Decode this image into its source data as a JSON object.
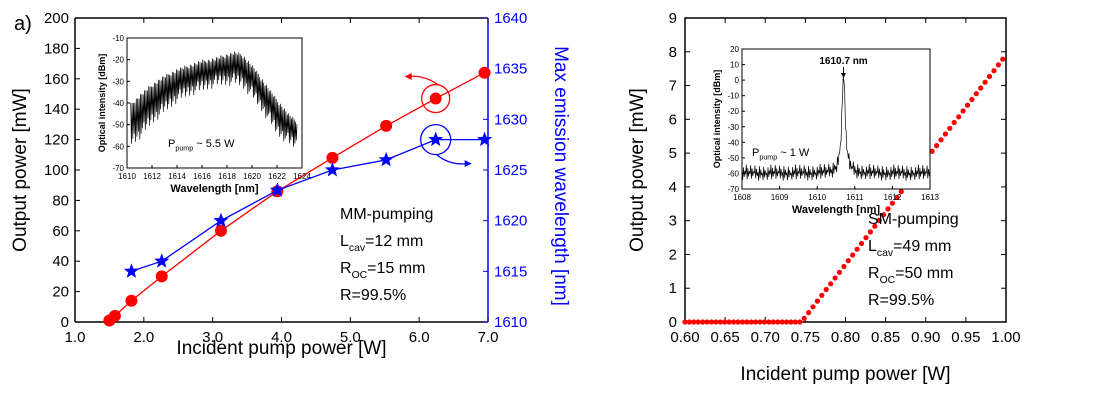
{
  "chart_data": [
    {
      "panel_label": "a)",
      "type": "line",
      "xlabel": "Incident pump power [W]",
      "ylabel": "Output power [mW]",
      "y2label": "Max emission wavelength [nm]",
      "xlim": [
        1.0,
        7.0
      ],
      "ylim": [
        0,
        200
      ],
      "y2lim": [
        1610,
        1640
      ],
      "x_ticks": [
        1.0,
        2.0,
        3.0,
        4.0,
        5.0,
        6.0,
        7.0
      ],
      "y_ticks": [
        0,
        20,
        40,
        60,
        80,
        100,
        120,
        140,
        160,
        180,
        200
      ],
      "y2_ticks": [
        1610,
        1615,
        1620,
        1625,
        1630,
        1635,
        1640
      ],
      "colors": {
        "power": "#ff0000",
        "wavelength": "#0000ff"
      },
      "series": [
        {
          "axis": "left",
          "marker": "circle",
          "x": [
            1.5,
            1.58,
            1.82,
            2.26,
            3.12,
            3.94,
            4.74,
            5.52,
            6.24,
            6.95
          ],
          "values": [
            1,
            4,
            14,
            30,
            60,
            86,
            108,
            129,
            147,
            164
          ]
        },
        {
          "axis": "right",
          "marker": "star",
          "x": [
            1.82,
            2.26,
            3.12,
            3.94,
            4.74,
            5.52,
            6.24,
            6.95
          ],
          "values": [
            1615,
            1616,
            1620,
            1623,
            1625,
            1626,
            1628,
            1628
          ]
        }
      ],
      "annotations": [
        "MM-pumping",
        "L_cav=12 mm",
        "R_OC=15 mm",
        "R=99.5%"
      ],
      "inset": {
        "type": "line",
        "xlabel": "Wavelength [nm]",
        "ylabel": "Optical intensity [dBm]",
        "xlim": [
          1610,
          1624
        ],
        "ylim": [
          -70,
          -10
        ],
        "x_ticks": [
          1610,
          1612,
          1614,
          1616,
          1618,
          1620,
          1622,
          1624
        ],
        "y_ticks": [
          -70,
          -60,
          -50,
          -40,
          -30,
          -20,
          -10
        ],
        "annotation": "P_pump ~ 5.5 W",
        "envelope": {
          "x": [
            1610.3,
            1611,
            1612,
            1613,
            1614,
            1615,
            1616,
            1617,
            1618,
            1618.6,
            1619.2,
            1620,
            1621,
            1622,
            1623,
            1623.6
          ],
          "upper": [
            -40,
            -36,
            -31,
            -27,
            -24,
            -22,
            -20,
            -19,
            -17,
            -16,
            -17,
            -22,
            -30,
            -38,
            -45,
            -48
          ],
          "lower": [
            -60,
            -57,
            -50,
            -45,
            -40,
            -37,
            -35,
            -33,
            -32,
            -32,
            -33,
            -38,
            -46,
            -55,
            -60,
            -62
          ]
        }
      }
    },
    {
      "type": "scatter",
      "xlabel": "Incident pump power [W]",
      "ylabel": "Output power [mW]",
      "xlim": [
        0.6,
        1.0
      ],
      "ylim": [
        0,
        9
      ],
      "x_ticks": [
        0.6,
        0.65,
        0.7,
        0.75,
        0.8,
        0.85,
        0.9,
        0.95,
        1.0
      ],
      "y_ticks": [
        0,
        1,
        2,
        3,
        4,
        5,
        6,
        7,
        8,
        9
      ],
      "color": "#ff0000",
      "series": [
        {
          "marker": "circle",
          "threshold": 0.745,
          "slope": 31.0,
          "x_start": 0.6,
          "x_end": 0.997,
          "step": 0.0055
        }
      ],
      "annotations": [
        "SM-pumping",
        "L_cav=49 mm",
        "R_OC=50 mm",
        "R=99.5%"
      ],
      "inset": {
        "type": "line",
        "xlabel": "Wavelength [nm]",
        "ylabel": "Optical intensity [dBm]",
        "xlim": [
          1608,
          1613
        ],
        "ylim": [
          -70,
          20
        ],
        "x_ticks": [
          1608,
          1609,
          1610,
          1611,
          1612,
          1613
        ],
        "y_ticks": [
          -70,
          -60,
          -50,
          -40,
          -30,
          -20,
          -10,
          0,
          10,
          20
        ],
        "peak_label": "1610.7 nm",
        "annotation": "P_pump ~ 1 W",
        "peak": {
          "x": 1610.7,
          "value": 2,
          "floor": -60
        }
      }
    }
  ]
}
